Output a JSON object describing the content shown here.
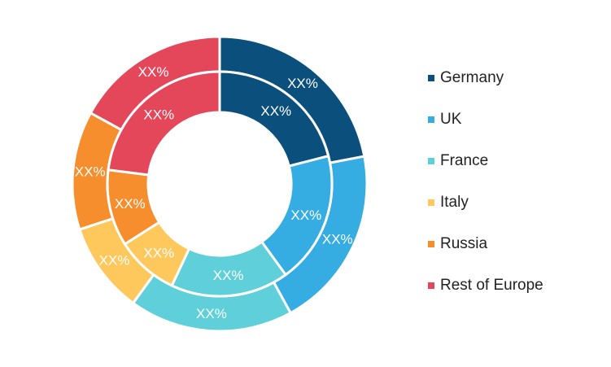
{
  "chart_data": {
    "type": "pie",
    "subtype": "nested-donut",
    "categories": [
      "Germany",
      "UK",
      "France",
      "Italy",
      "Russia",
      "Rest of Europe"
    ],
    "colors": [
      "#0b4f7c",
      "#35ade2",
      "#5fd0d9",
      "#ffc85c",
      "#f68e2d",
      "#e4475a"
    ],
    "series": [
      {
        "values": [
          22,
          20,
          18,
          10,
          13,
          17
        ],
        "labels": [
          "XX%",
          "XX%",
          "XX%",
          "XX%",
          "XX%",
          "XX%"
        ]
      },
      {
        "values": [
          21,
          19,
          17,
          9,
          11,
          23
        ],
        "labels": [
          "XX%",
          "XX%",
          "XX%",
          "XX%",
          "XX%",
          "XX%"
        ]
      }
    ],
    "legend_position": "right"
  }
}
